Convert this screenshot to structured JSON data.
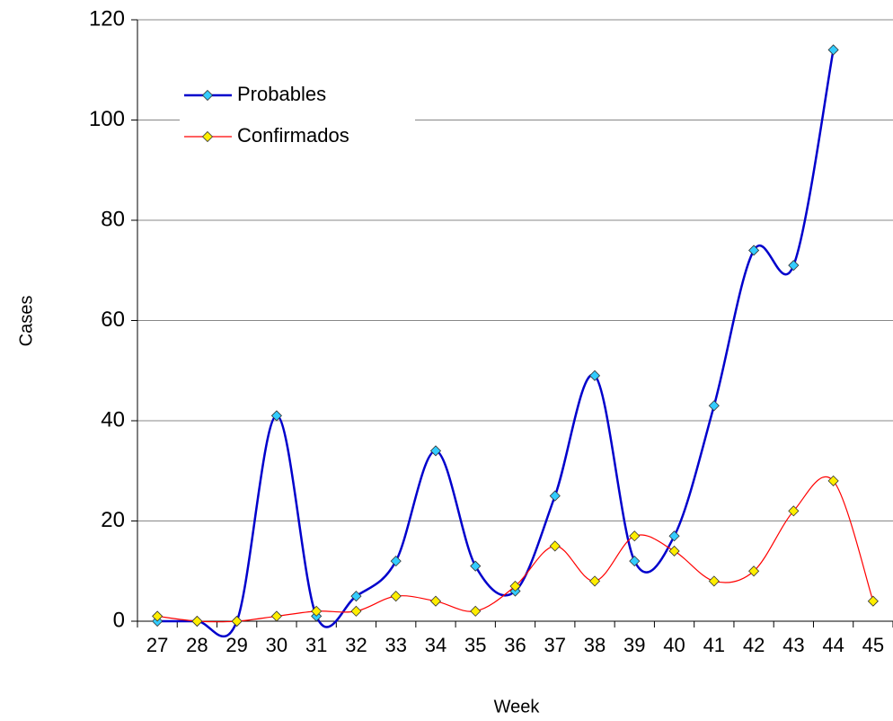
{
  "chart_data": {
    "type": "line",
    "x_label": "Week",
    "y_label": "Cases",
    "categories": [
      "27",
      "28",
      "29",
      "30",
      "31",
      "32",
      "33",
      "34",
      "35",
      "36",
      "37",
      "38",
      "39",
      "40",
      "41",
      "42",
      "43",
      "44",
      "45"
    ],
    "series": [
      {
        "name": "Probables",
        "color": "#0000cc",
        "marker_color": "#33ccff",
        "values": [
          0,
          0,
          0,
          41,
          1,
          5,
          12,
          34,
          11,
          6,
          25,
          49,
          12,
          17,
          43,
          74,
          71,
          114,
          null
        ]
      },
      {
        "name": "Confirmados",
        "color": "#ff0000",
        "marker_color": "#ffee00",
        "values": [
          1,
          0,
          0,
          1,
          2,
          2,
          5,
          4,
          2,
          7,
          15,
          8,
          17,
          14,
          8,
          10,
          22,
          28,
          4
        ]
      }
    ],
    "ylim": [
      0,
      120
    ],
    "yticks": [
      0,
      20,
      40,
      60,
      80,
      100,
      120
    ],
    "grid": true,
    "smooth": true,
    "legend": "upper left"
  }
}
